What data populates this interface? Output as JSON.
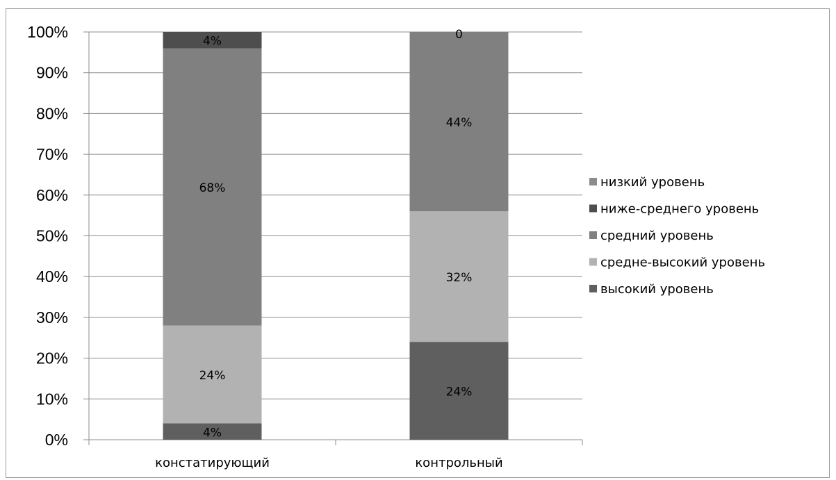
{
  "chart_data": {
    "type": "bar",
    "stacked": true,
    "categories": [
      "констатирующий",
      "контрольный"
    ],
    "series": [
      {
        "name": "высокий уровень",
        "values": [
          4,
          24
        ],
        "labels": [
          "4%",
          "24%"
        ],
        "color": "#5f5f5f"
      },
      {
        "name": "средне-высокий уровень",
        "values": [
          24,
          32
        ],
        "labels": [
          "24%",
          "32%"
        ],
        "color": "#b2b2b2"
      },
      {
        "name": "средний уровень",
        "values": [
          68,
          44
        ],
        "labels": [
          "68%",
          "44%"
        ],
        "color": "#808080"
      },
      {
        "name": "ниже-среднего уровень",
        "values": [
          4,
          0
        ],
        "labels": [
          "4%",
          "0"
        ],
        "color": "#4e4e4e"
      },
      {
        "name": "низкий уровень",
        "values": [
          0,
          0
        ],
        "labels": [
          "",
          ""
        ],
        "color": "#8c8c8c"
      }
    ],
    "legend_order": [
      "низкий уровень",
      "ниже-среднего уровень",
      "средний уровень",
      "средне-высокий уровень",
      "высокий уровень"
    ],
    "yticks": [
      "0%",
      "10%",
      "20%",
      "30%",
      "40%",
      "50%",
      "60%",
      "70%",
      "80%",
      "90%",
      "100%"
    ],
    "ylim": [
      0,
      100
    ],
    "grid": true,
    "legend_position": "right",
    "title": "",
    "xlabel": "",
    "ylabel": ""
  }
}
